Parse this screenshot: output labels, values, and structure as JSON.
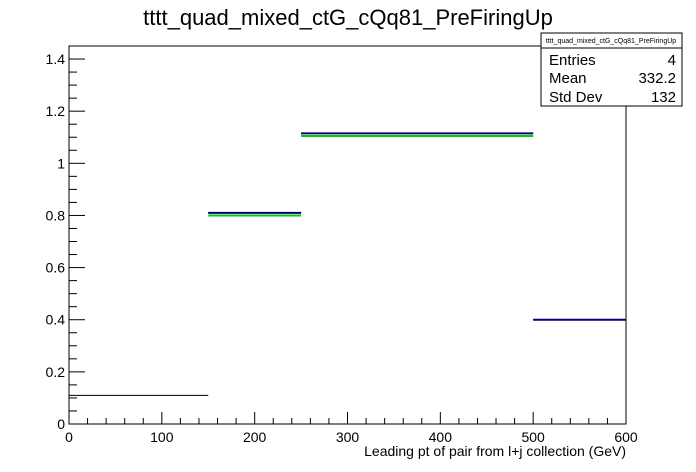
{
  "chart_data": {
    "type": "histogram",
    "title": "tttt_quad_mixed_ctG_cQq81_PreFiringUp",
    "xlabel": "Leading pt of pair from l+j collection (GeV)",
    "ylabel": "",
    "xlim": [
      0,
      600
    ],
    "ylim": [
      0,
      1.45
    ],
    "x_ticks": [
      0,
      100,
      200,
      300,
      400,
      500,
      600
    ],
    "y_ticks": [
      0,
      0.2,
      0.4,
      0.6,
      0.8,
      1,
      1.2,
      1.4
    ],
    "y_tick_labels": [
      "0",
      "0.2",
      "0.4",
      "0.6",
      "0.8",
      "1",
      "1.2",
      "1.4"
    ],
    "grid": false,
    "series": [
      {
        "color": "#000000",
        "bins": [
          {
            "x0": 0,
            "x1": 150,
            "y": 0.11
          },
          {
            "x0": 150,
            "x1": 250,
            "y": 0.81
          },
          {
            "x0": 250,
            "x1": 500,
            "y": 1.115
          },
          {
            "x0": 500,
            "x1": 600,
            "y": 0.4
          }
        ]
      },
      {
        "color": "#00cc00",
        "bins": [
          {
            "x0": 150,
            "x1": 250,
            "y": 0.8
          },
          {
            "x0": 250,
            "x1": 500,
            "y": 1.105
          }
        ]
      },
      {
        "color": "#000080",
        "bins": [
          {
            "x0": 150,
            "x1": 250,
            "y": 0.81
          },
          {
            "x0": 250,
            "x1": 500,
            "y": 1.115
          },
          {
            "x0": 500,
            "x1": 600,
            "y": 0.4
          }
        ]
      }
    ],
    "stats_box": {
      "title": "tttt_quad_mixed_ctG_cQq81_PreFiringUp",
      "rows": [
        {
          "label": "Entries",
          "value": "4"
        },
        {
          "label": "Mean",
          "value": "332.2"
        },
        {
          "label": "Std Dev",
          "value": "132"
        }
      ]
    }
  }
}
